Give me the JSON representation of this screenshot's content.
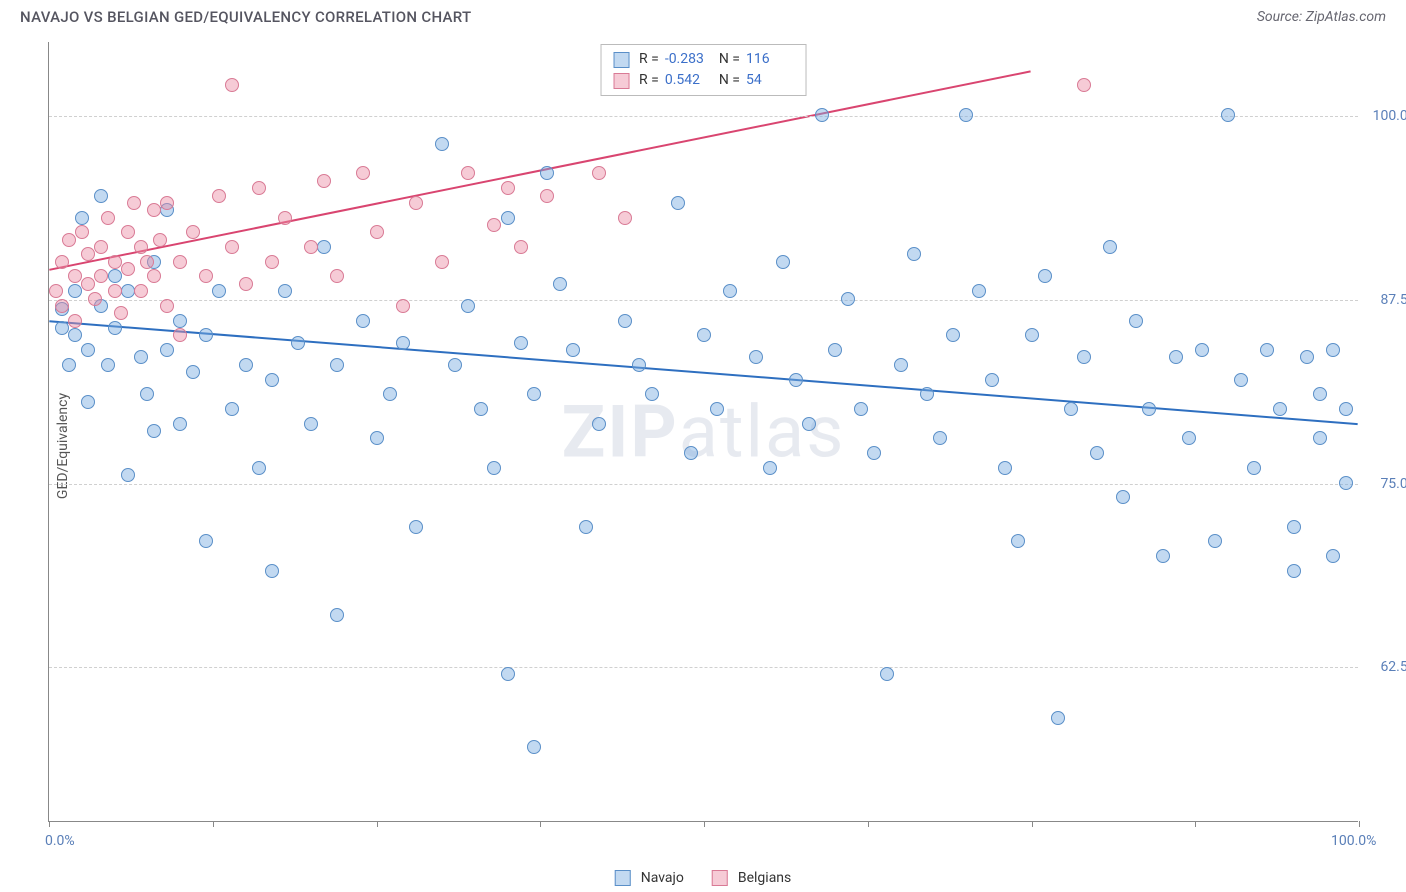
{
  "title": "NAVAJO VS BELGIAN GED/EQUIVALENCY CORRELATION CHART",
  "source": "Source: ZipAtlas.com",
  "ylabel": "GED/Equivalency",
  "watermark_bold": "ZIP",
  "watermark_light": "atlas",
  "chart": {
    "type": "scatter",
    "background_color": "#ffffff",
    "grid_color": "#d0d0d0",
    "axis_color": "#888888",
    "xlim": [
      0,
      100
    ],
    "ylim": [
      52,
      105
    ],
    "x_ticks": [
      0,
      12.5,
      25,
      37.5,
      50,
      62.5,
      75,
      87.5,
      100
    ],
    "x_tick_labels": {
      "0": "0.0%",
      "100": "100.0%"
    },
    "y_gridlines": [
      62.5,
      75,
      87.5,
      100
    ],
    "y_tick_labels": {
      "62.5": "62.5%",
      "75": "75.0%",
      "87.5": "87.5%",
      "100": "100.0%"
    },
    "marker_radius": 7,
    "marker_stroke_width": 1.2,
    "trendline_width": 2
  },
  "series": {
    "navajo": {
      "label": "Navajo",
      "fill_color": "rgba(120,170,225,0.45)",
      "stroke_color": "#5a8fc8",
      "line_color": "#2e6fc0",
      "R_label": "R =",
      "R_value": "-0.283",
      "N_label": "N =",
      "N_value": "116",
      "trendline": {
        "x1": 0,
        "y1": 86,
        "x2": 100,
        "y2": 79
      },
      "points": [
        [
          1,
          85.5
        ],
        [
          1,
          86.8
        ],
        [
          1.5,
          83
        ],
        [
          2,
          88
        ],
        [
          2,
          85
        ],
        [
          2.5,
          93
        ],
        [
          3,
          84
        ],
        [
          3,
          80.5
        ],
        [
          4,
          94.5
        ],
        [
          4,
          87
        ],
        [
          4.5,
          83
        ],
        [
          5,
          89
        ],
        [
          5,
          85.5
        ],
        [
          6,
          75.5
        ],
        [
          6,
          88
        ],
        [
          7,
          83.5
        ],
        [
          7.5,
          81
        ],
        [
          8,
          90
        ],
        [
          8,
          78.5
        ],
        [
          9,
          84
        ],
        [
          9,
          93.5
        ],
        [
          10,
          86
        ],
        [
          10,
          79
        ],
        [
          11,
          82.5
        ],
        [
          12,
          71
        ],
        [
          12,
          85
        ],
        [
          13,
          88
        ],
        [
          14,
          80
        ],
        [
          15,
          83
        ],
        [
          16,
          76
        ],
        [
          17,
          69
        ],
        [
          17,
          82
        ],
        [
          18,
          88
        ],
        [
          19,
          84.5
        ],
        [
          20,
          79
        ],
        [
          21,
          91
        ],
        [
          22,
          66
        ],
        [
          22,
          83
        ],
        [
          24,
          86
        ],
        [
          25,
          78
        ],
        [
          26,
          81
        ],
        [
          27,
          84.5
        ],
        [
          28,
          72
        ],
        [
          30,
          98
        ],
        [
          31,
          83
        ],
        [
          32,
          87
        ],
        [
          33,
          80
        ],
        [
          34,
          76
        ],
        [
          35,
          93
        ],
        [
          35,
          62
        ],
        [
          36,
          84.5
        ],
        [
          37,
          57
        ],
        [
          37,
          81
        ],
        [
          38,
          96
        ],
        [
          39,
          88.5
        ],
        [
          40,
          84
        ],
        [
          41,
          72
        ],
        [
          42,
          79
        ],
        [
          44,
          86
        ],
        [
          45,
          83
        ],
        [
          46,
          81
        ],
        [
          48,
          94
        ],
        [
          49,
          77
        ],
        [
          50,
          85
        ],
        [
          51,
          80
        ],
        [
          52,
          88
        ],
        [
          54,
          83.5
        ],
        [
          55,
          76
        ],
        [
          56,
          90
        ],
        [
          57,
          82
        ],
        [
          58,
          79
        ],
        [
          59,
          100
        ],
        [
          60,
          84
        ],
        [
          61,
          87.5
        ],
        [
          62,
          80
        ],
        [
          63,
          77
        ],
        [
          64,
          62
        ],
        [
          65,
          83
        ],
        [
          66,
          90.5
        ],
        [
          67,
          81
        ],
        [
          68,
          78
        ],
        [
          69,
          85
        ],
        [
          70,
          100
        ],
        [
          71,
          88
        ],
        [
          72,
          82
        ],
        [
          73,
          76
        ],
        [
          74,
          71
        ],
        [
          75,
          85
        ],
        [
          76,
          89
        ],
        [
          77,
          59
        ],
        [
          78,
          80
        ],
        [
          79,
          83.5
        ],
        [
          80,
          77
        ],
        [
          81,
          91
        ],
        [
          82,
          74
        ],
        [
          83,
          86
        ],
        [
          84,
          80
        ],
        [
          85,
          70
        ],
        [
          86,
          83.5
        ],
        [
          87,
          78
        ],
        [
          88,
          84
        ],
        [
          89,
          71
        ],
        [
          90,
          100
        ],
        [
          91,
          82
        ],
        [
          92,
          76
        ],
        [
          93,
          84
        ],
        [
          94,
          80
        ],
        [
          95,
          69
        ],
        [
          95,
          72
        ],
        [
          96,
          83.5
        ],
        [
          97,
          78
        ],
        [
          97,
          81
        ],
        [
          98,
          70
        ],
        [
          98,
          84
        ],
        [
          99,
          75
        ],
        [
          99,
          80
        ]
      ]
    },
    "belgians": {
      "label": "Belgians",
      "fill_color": "rgba(235,140,165,0.45)",
      "stroke_color": "#d97a95",
      "line_color": "#d94570",
      "R_label": "R =",
      "R_value": "0.542",
      "N_label": "N =",
      "N_value": "54",
      "trendline": {
        "x1": 0,
        "y1": 89.5,
        "x2": 75,
        "y2": 103
      },
      "points": [
        [
          0.5,
          88
        ],
        [
          1,
          90
        ],
        [
          1,
          87
        ],
        [
          1.5,
          91.5
        ],
        [
          2,
          89
        ],
        [
          2,
          86
        ],
        [
          2.5,
          92
        ],
        [
          3,
          88.5
        ],
        [
          3,
          90.5
        ],
        [
          3.5,
          87.5
        ],
        [
          4,
          91
        ],
        [
          4,
          89
        ],
        [
          4.5,
          93
        ],
        [
          5,
          90
        ],
        [
          5,
          88
        ],
        [
          5.5,
          86.5
        ],
        [
          6,
          92
        ],
        [
          6,
          89.5
        ],
        [
          6.5,
          94
        ],
        [
          7,
          91
        ],
        [
          7,
          88
        ],
        [
          7.5,
          90
        ],
        [
          8,
          93.5
        ],
        [
          8,
          89
        ],
        [
          8.5,
          91.5
        ],
        [
          9,
          87
        ],
        [
          9,
          94
        ],
        [
          10,
          90
        ],
        [
          10,
          85
        ],
        [
          11,
          92
        ],
        [
          12,
          89
        ],
        [
          13,
          94.5
        ],
        [
          14,
          91
        ],
        [
          14,
          102
        ],
        [
          15,
          88.5
        ],
        [
          16,
          95
        ],
        [
          17,
          90
        ],
        [
          18,
          93
        ],
        [
          20,
          91
        ],
        [
          21,
          95.5
        ],
        [
          22,
          89
        ],
        [
          24,
          96
        ],
        [
          25,
          92
        ],
        [
          27,
          87
        ],
        [
          28,
          94
        ],
        [
          30,
          90
        ],
        [
          32,
          96
        ],
        [
          34,
          92.5
        ],
        [
          35,
          95
        ],
        [
          36,
          91
        ],
        [
          38,
          94.5
        ],
        [
          42,
          96
        ],
        [
          44,
          93
        ],
        [
          79,
          102
        ]
      ]
    }
  },
  "legend": {
    "items": [
      {
        "key": "navajo",
        "label": "Navajo"
      },
      {
        "key": "belgians",
        "label": "Belgians"
      }
    ]
  }
}
